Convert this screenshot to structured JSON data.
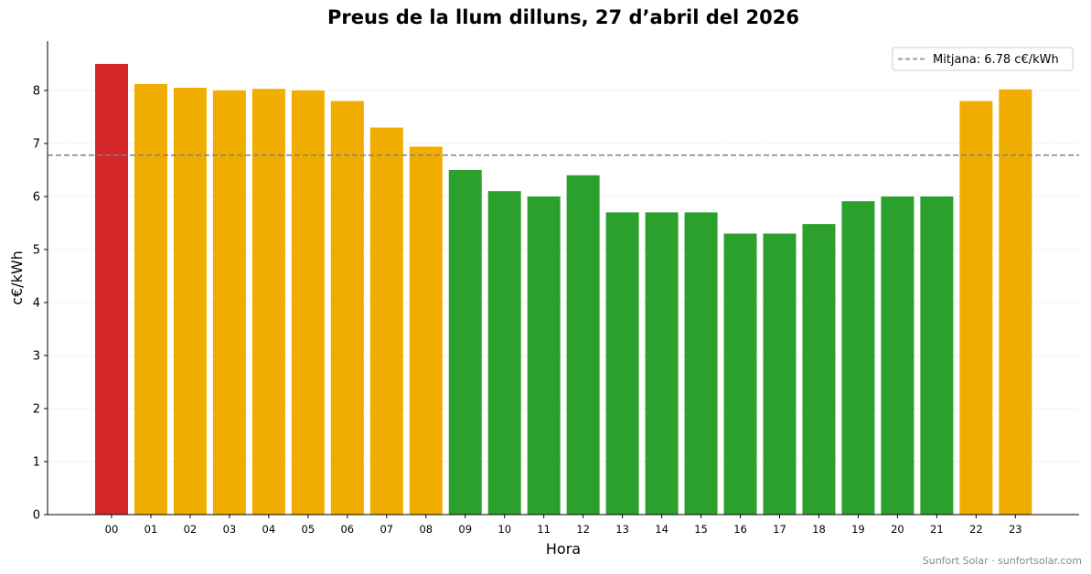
{
  "chart_data": {
    "type": "bar",
    "title": "Preus de la llum dilluns, 27 d’abril del 2026",
    "xlabel": "Hora",
    "ylabel": "c€/kWh",
    "ylim": [
      0,
      8.93
    ],
    "yticks": [
      0,
      1,
      2,
      3,
      4,
      5,
      6,
      7,
      8
    ],
    "grid": "horizontal dotted",
    "categories": [
      "00",
      "01",
      "02",
      "03",
      "04",
      "05",
      "06",
      "07",
      "08",
      "09",
      "10",
      "11",
      "12",
      "13",
      "14",
      "15",
      "16",
      "17",
      "18",
      "19",
      "20",
      "21",
      "22",
      "23"
    ],
    "values": [
      8.5,
      8.12,
      8.05,
      8.0,
      8.03,
      8.0,
      7.8,
      7.3,
      6.94,
      6.5,
      6.1,
      6.0,
      6.4,
      5.7,
      5.7,
      5.7,
      5.3,
      5.3,
      5.48,
      5.91,
      6.0,
      6.0,
      7.8,
      8.02
    ],
    "bar_colors": [
      "#d62728",
      "#f0ad00",
      "#f0ad00",
      "#f0ad00",
      "#f0ad00",
      "#f0ad00",
      "#f0ad00",
      "#f0ad00",
      "#f0ad00",
      "#2ca02c",
      "#2ca02c",
      "#2ca02c",
      "#2ca02c",
      "#2ca02c",
      "#2ca02c",
      "#2ca02c",
      "#2ca02c",
      "#2ca02c",
      "#2ca02c",
      "#2ca02c",
      "#2ca02c",
      "#2ca02c",
      "#f0ad00",
      "#f0ad00"
    ],
    "average": {
      "value": 6.78,
      "label": "Mitjana: 6.78 c€/kWh",
      "color": "#808080",
      "style": "dashed"
    },
    "legend_position": "top-right"
  },
  "footer": "Sunfort Solar · sunfortsolar.com"
}
